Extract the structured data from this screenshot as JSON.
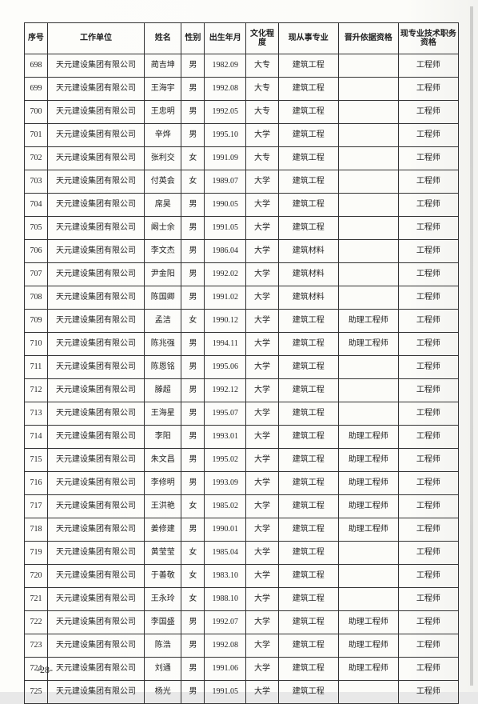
{
  "table": {
    "columns": [
      {
        "label": "序号",
        "width": "5%"
      },
      {
        "label": "工作单位",
        "width": "21%"
      },
      {
        "label": "姓名",
        "width": "8%"
      },
      {
        "label": "性别",
        "width": "5%"
      },
      {
        "label": "出生年月",
        "width": "9%"
      },
      {
        "label": "文化程度",
        "width": "7%"
      },
      {
        "label": "现从事专业",
        "width": "13%"
      },
      {
        "label": "晋升依据资格",
        "width": "13%"
      },
      {
        "label": "现专业技术职务资格",
        "width": "13%"
      }
    ],
    "rows": [
      [
        "698",
        "天元建设集团有限公司",
        "蔺吉坤",
        "男",
        "1982.09",
        "大专",
        "建筑工程",
        "",
        "工程师"
      ],
      [
        "699",
        "天元建设集团有限公司",
        "王海宇",
        "男",
        "1992.08",
        "大专",
        "建筑工程",
        "",
        "工程师"
      ],
      [
        "700",
        "天元建设集团有限公司",
        "王忠明",
        "男",
        "1992.05",
        "大专",
        "建筑工程",
        "",
        "工程师"
      ],
      [
        "701",
        "天元建设集团有限公司",
        "辛烨",
        "男",
        "1995.10",
        "大学",
        "建筑工程",
        "",
        "工程师"
      ],
      [
        "702",
        "天元建设集团有限公司",
        "张利交",
        "女",
        "1991.09",
        "大专",
        "建筑工程",
        "",
        "工程师"
      ],
      [
        "703",
        "天元建设集团有限公司",
        "付英会",
        "女",
        "1989.07",
        "大学",
        "建筑工程",
        "",
        "工程师"
      ],
      [
        "704",
        "天元建设集团有限公司",
        "席昊",
        "男",
        "1990.05",
        "大学",
        "建筑工程",
        "",
        "工程师"
      ],
      [
        "705",
        "天元建设集团有限公司",
        "阚士余",
        "男",
        "1991.05",
        "大学",
        "建筑工程",
        "",
        "工程师"
      ],
      [
        "706",
        "天元建设集团有限公司",
        "李文杰",
        "男",
        "1986.04",
        "大学",
        "建筑材料",
        "",
        "工程师"
      ],
      [
        "707",
        "天元建设集团有限公司",
        "尹金阳",
        "男",
        "1992.02",
        "大学",
        "建筑材料",
        "",
        "工程师"
      ],
      [
        "708",
        "天元建设集团有限公司",
        "陈国卿",
        "男",
        "1991.02",
        "大学",
        "建筑材料",
        "",
        "工程师"
      ],
      [
        "709",
        "天元建设集团有限公司",
        "孟洁",
        "女",
        "1990.12",
        "大学",
        "建筑工程",
        "助理工程师",
        "工程师"
      ],
      [
        "710",
        "天元建设集团有限公司",
        "陈兆强",
        "男",
        "1994.11",
        "大学",
        "建筑工程",
        "助理工程师",
        "工程师"
      ],
      [
        "711",
        "天元建设集团有限公司",
        "陈恩铭",
        "男",
        "1995.06",
        "大学",
        "建筑工程",
        "",
        "工程师"
      ],
      [
        "712",
        "天元建设集团有限公司",
        "滕超",
        "男",
        "1992.12",
        "大学",
        "建筑工程",
        "",
        "工程师"
      ],
      [
        "713",
        "天元建设集团有限公司",
        "王海星",
        "男",
        "1995.07",
        "大学",
        "建筑工程",
        "",
        "工程师"
      ],
      [
        "714",
        "天元建设集团有限公司",
        "李阳",
        "男",
        "1993.01",
        "大学",
        "建筑工程",
        "助理工程师",
        "工程师"
      ],
      [
        "715",
        "天元建设集团有限公司",
        "朱文昌",
        "男",
        "1995.02",
        "大学",
        "建筑工程",
        "助理工程师",
        "工程师"
      ],
      [
        "716",
        "天元建设集团有限公司",
        "李修明",
        "男",
        "1993.09",
        "大学",
        "建筑工程",
        "助理工程师",
        "工程师"
      ],
      [
        "717",
        "天元建设集团有限公司",
        "王洪艳",
        "女",
        "1985.02",
        "大学",
        "建筑工程",
        "助理工程师",
        "工程师"
      ],
      [
        "718",
        "天元建设集团有限公司",
        "姜修建",
        "男",
        "1990.01",
        "大学",
        "建筑工程",
        "助理工程师",
        "工程师"
      ],
      [
        "719",
        "天元建设集团有限公司",
        "黄莹莹",
        "女",
        "1985.04",
        "大学",
        "建筑工程",
        "",
        "工程师"
      ],
      [
        "720",
        "天元建设集团有限公司",
        "于善敬",
        "女",
        "1983.10",
        "大学",
        "建筑工程",
        "",
        "工程师"
      ],
      [
        "721",
        "天元建设集团有限公司",
        "王永玲",
        "女",
        "1988.10",
        "大学",
        "建筑工程",
        "",
        "工程师"
      ],
      [
        "722",
        "天元建设集团有限公司",
        "李国盛",
        "男",
        "1992.07",
        "大学",
        "建筑工程",
        "助理工程师",
        "工程师"
      ],
      [
        "723",
        "天元建设集团有限公司",
        "陈浩",
        "男",
        "1992.08",
        "大学",
        "建筑工程",
        "助理工程师",
        "工程师"
      ],
      [
        "724",
        "天元建设集团有限公司",
        "刘通",
        "男",
        "1991.06",
        "大学",
        "建筑工程",
        "助理工程师",
        "工程师"
      ],
      [
        "725",
        "天元建设集团有限公司",
        "杨光",
        "男",
        "1991.05",
        "大学",
        "建筑工程",
        "",
        "工程师"
      ]
    ]
  },
  "page_number": "-28-",
  "styles": {
    "border_color": "#333333",
    "background": "#fdfdfa",
    "text_color": "#222222",
    "header_fontsize": 10,
    "cell_fontsize": 10
  }
}
